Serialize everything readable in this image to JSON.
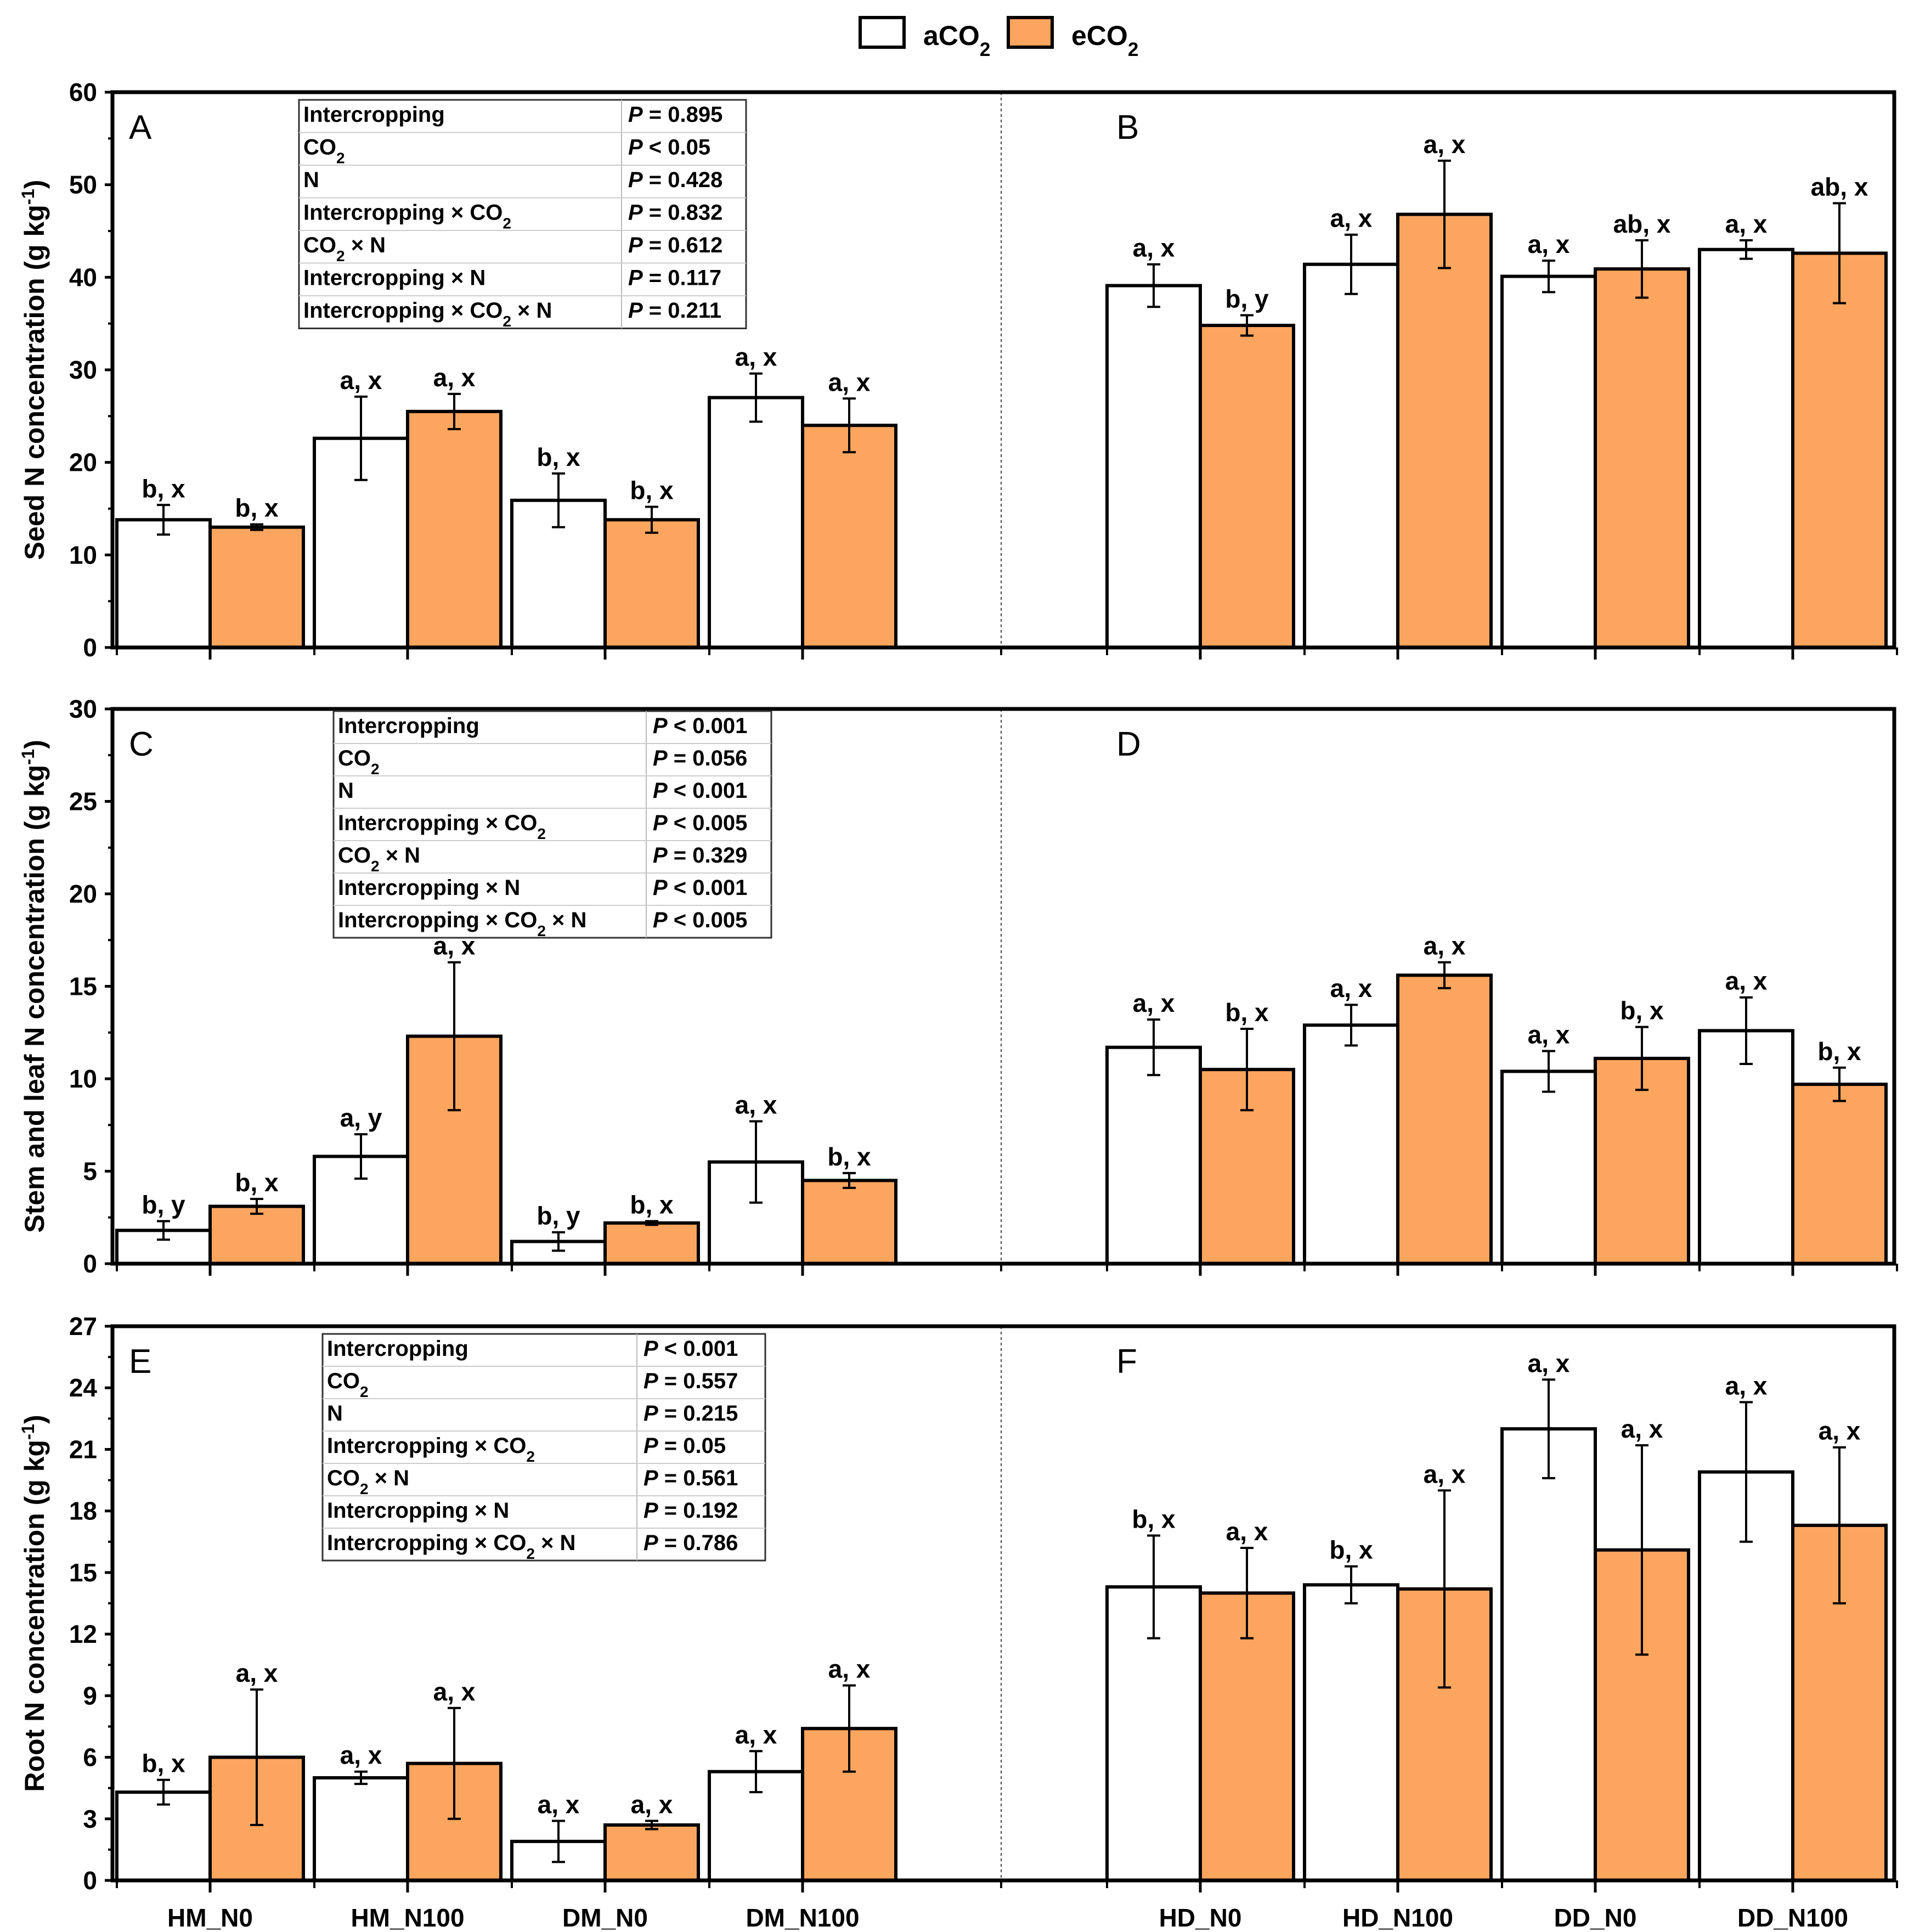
{
  "legend": {
    "entries": [
      {
        "label": "aCO",
        "sub": "2",
        "color": "#ffffff"
      },
      {
        "label": "eCO",
        "sub": "2",
        "color": "#fca55e"
      }
    ]
  },
  "colors": {
    "aCO2": "#ffffff",
    "eCO2": "#fca55e",
    "stroke": "#000000"
  },
  "chart_data": [
    {
      "type": "bar",
      "panel": "A-B",
      "panel_letters": [
        "A",
        "B"
      ],
      "ylabel": "Seed N concentration (g kg-1)",
      "ylabel_parts": [
        "Seed N concentration (g kg",
        "-1",
        ")"
      ],
      "ylim": [
        0,
        60
      ],
      "yticks": [
        0,
        10,
        20,
        30,
        40,
        50,
        60
      ],
      "categories": [
        "HM_N0",
        "HM_N100",
        "DM_N0",
        "DM_N100",
        "HD_N0",
        "HD_N100",
        "DD_N0",
        "DD_N100"
      ],
      "series": [
        {
          "name": "aCO2",
          "values": [
            13.8,
            22.6,
            15.9,
            27.0,
            39.1,
            41.4,
            40.1,
            43.0
          ],
          "errors": [
            1.6,
            4.5,
            2.9,
            2.6,
            2.3,
            3.2,
            1.7,
            1.0
          ],
          "labels": [
            "b, x",
            "a, x",
            "b, x",
            "a, x",
            "a, x",
            "a, x",
            "a, x",
            "a, x"
          ]
        },
        {
          "name": "eCO2",
          "values": [
            13.0,
            25.5,
            13.8,
            24.0,
            34.8,
            46.8,
            40.9,
            42.6
          ],
          "errors": [
            0.3,
            1.9,
            1.4,
            2.9,
            1.1,
            5.8,
            3.1,
            5.4
          ],
          "labels": [
            "b, x",
            "a, x",
            "b, x",
            "a, x",
            "b, y",
            "a, x",
            "ab, x",
            "ab, x"
          ]
        }
      ],
      "stats_table": [
        {
          "factor": "Intercropping",
          "p": "= 0.895"
        },
        {
          "factor": "CO2",
          "p": "< 0.05"
        },
        {
          "factor": "N",
          "p": "= 0.428"
        },
        {
          "factor": "Intercropping × CO2",
          "p": "= 0.832"
        },
        {
          "factor": "CO2 × N",
          "p": "= 0.612"
        },
        {
          "factor": "Intercropping × N",
          "p": "= 0.117"
        },
        {
          "factor": "Intercropping × CO2 × N",
          "p": "= 0.211"
        }
      ]
    },
    {
      "type": "bar",
      "panel": "C-D",
      "panel_letters": [
        "C",
        "D"
      ],
      "ylabel": "Stem and leaf N concentration (g kg-1)",
      "ylabel_parts": [
        "Stem and leaf N concentration (g kg",
        "-1",
        ")"
      ],
      "ylim": [
        0,
        30
      ],
      "yticks": [
        0,
        5,
        10,
        15,
        20,
        25,
        30
      ],
      "categories": [
        "HM_N0",
        "HM_N100",
        "DM_N0",
        "DM_N100",
        "HD_N0",
        "HD_N100",
        "DD_N0",
        "DD_N100"
      ],
      "series": [
        {
          "name": "aCO2",
          "values": [
            1.8,
            5.8,
            1.2,
            5.5,
            11.7,
            12.9,
            10.4,
            12.6
          ],
          "errors": [
            0.5,
            1.2,
            0.5,
            2.2,
            1.5,
            1.1,
            1.1,
            1.8
          ],
          "labels": [
            "b, y",
            "a, y",
            "b, y",
            "a, x",
            "a, x",
            "a, x",
            "a, x",
            "a, x"
          ]
        },
        {
          "name": "eCO2",
          "values": [
            3.1,
            12.3,
            2.2,
            4.5,
            10.5,
            15.6,
            11.1,
            9.7
          ],
          "errors": [
            0.4,
            4.0,
            0.1,
            0.4,
            2.2,
            0.7,
            1.7,
            0.9
          ],
          "labels": [
            "b, x",
            "a, x",
            "b, x",
            "b, x",
            "b, x",
            "a, x",
            "b, x",
            "b, x"
          ]
        }
      ],
      "stats_table": [
        {
          "factor": "Intercropping",
          "p": "< 0.001"
        },
        {
          "factor": "CO2",
          "p": "= 0.056"
        },
        {
          "factor": "N",
          "p": "< 0.001"
        },
        {
          "factor": "Intercropping × CO2",
          "p": "< 0.005"
        },
        {
          "factor": "CO2 × N",
          "p": "= 0.329"
        },
        {
          "factor": "Intercropping × N",
          "p": "< 0.001"
        },
        {
          "factor": "Intercropping × CO2 × N",
          "p": "< 0.005"
        }
      ]
    },
    {
      "type": "bar",
      "panel": "E-F",
      "panel_letters": [
        "E",
        "F"
      ],
      "ylabel": "Root N concentration (g kg-1)",
      "ylabel_parts": [
        "Root N concentration (g kg",
        "-1",
        ")"
      ],
      "ylim": [
        0,
        27
      ],
      "yticks": [
        0,
        3,
        6,
        9,
        12,
        15,
        18,
        21,
        24,
        27
      ],
      "categories": [
        "HM_N0",
        "HM_N100",
        "DM_N0",
        "DM_N100",
        "HD_N0",
        "HD_N100",
        "DD_N0",
        "DD_N100"
      ],
      "series": [
        {
          "name": "aCO2",
          "values": [
            4.3,
            5.0,
            1.9,
            5.3,
            14.3,
            14.4,
            22.0,
            19.9
          ],
          "errors": [
            0.6,
            0.3,
            1.0,
            1.0,
            2.5,
            0.9,
            2.4,
            3.4
          ],
          "labels": [
            "b, x",
            "a, x",
            "a, x",
            "a, x",
            "b, x",
            "b, x",
            "a, x",
            "a, x"
          ]
        },
        {
          "name": "eCO2",
          "values": [
            6.0,
            5.7,
            2.7,
            7.4,
            14.0,
            14.2,
            16.1,
            17.3
          ],
          "errors": [
            3.3,
            2.7,
            0.2,
            2.1,
            2.2,
            4.8,
            5.1,
            3.8
          ],
          "labels": [
            "a, x",
            "a, x",
            "a, x",
            "a, x",
            "a, x",
            "a, x",
            "a, x",
            "a, x"
          ]
        }
      ],
      "stats_table": [
        {
          "factor": "Intercropping",
          "p": "< 0.001"
        },
        {
          "factor": "CO2",
          "p": "= 0.557"
        },
        {
          "factor": "N",
          "p": "= 0.215"
        },
        {
          "factor": "Intercropping × CO2",
          "p": "= 0.05"
        },
        {
          "factor": "CO2 × N",
          "p": "= 0.561"
        },
        {
          "factor": "Intercropping × N",
          "p": "= 0.192"
        },
        {
          "factor": "Intercropping × CO2 × N",
          "p": "= 0.786"
        }
      ]
    }
  ]
}
